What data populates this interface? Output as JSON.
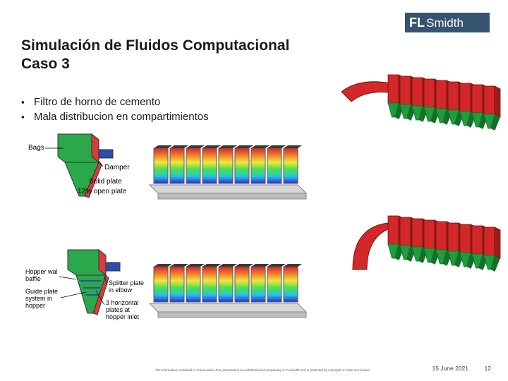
{
  "logo": {
    "prefix": "FL",
    "suffix": "Smidth",
    "bg": "#34546f",
    "fg": "#ffffff"
  },
  "title_line1": "Simulación de Fluidos Computacional",
  "title_line2": "Caso 3",
  "bullets": [
    "Filtro de horno de cemento",
    "Mala distribucion en compartimientos"
  ],
  "hopper1_labels": {
    "bags": "Bags",
    "damper": "Damper",
    "solid_plate": "Solid plate",
    "open_plate": "12% open plate"
  },
  "hopper1_colors": {
    "left_face": "#2aa84a",
    "right_face": "#d93b3e",
    "inlet": "#2b4fa8",
    "outline": "#333333"
  },
  "hopper2_labels": {
    "hopper_wall_baffle_1": "Hopper wal",
    "hopper_wall_baffle_2": "baffle",
    "guide_1": "Guide plate",
    "guide_2": "system in",
    "guide_3": "hopper",
    "splitter_1": "Splitter plate",
    "splitter_2": "in elbow",
    "horiz_1": "3 horizontal",
    "horiz_2": "plates at",
    "horiz_3": "hopper inlet"
  },
  "hopper2_colors": {
    "left_face": "#2aa84a",
    "right_face": "#d93b3e",
    "inlet": "#2b4fa8",
    "outline": "#333333"
  },
  "compartments": {
    "count": 9,
    "box_outline": "#5a5a5a",
    "base": "#d6d6d6",
    "cfd_stops": [
      "#2b2bdc",
      "#26c4e0",
      "#4be04b",
      "#f2e63a",
      "#ef7e2f",
      "#d62727"
    ]
  },
  "red_render": {
    "body": "#d42828",
    "body_dark": "#9e1c1c",
    "hopper": "#1f9d3b",
    "hopper_dark": "#13702a",
    "stroke": "#6a1414",
    "count": 9
  },
  "footer": {
    "copyright": "The information contained or referenced in this presentation is confidential and proprietary to FLSmidth and is protected by copyright or trade secret laws.",
    "date": "15 June 2021",
    "page": "12"
  }
}
